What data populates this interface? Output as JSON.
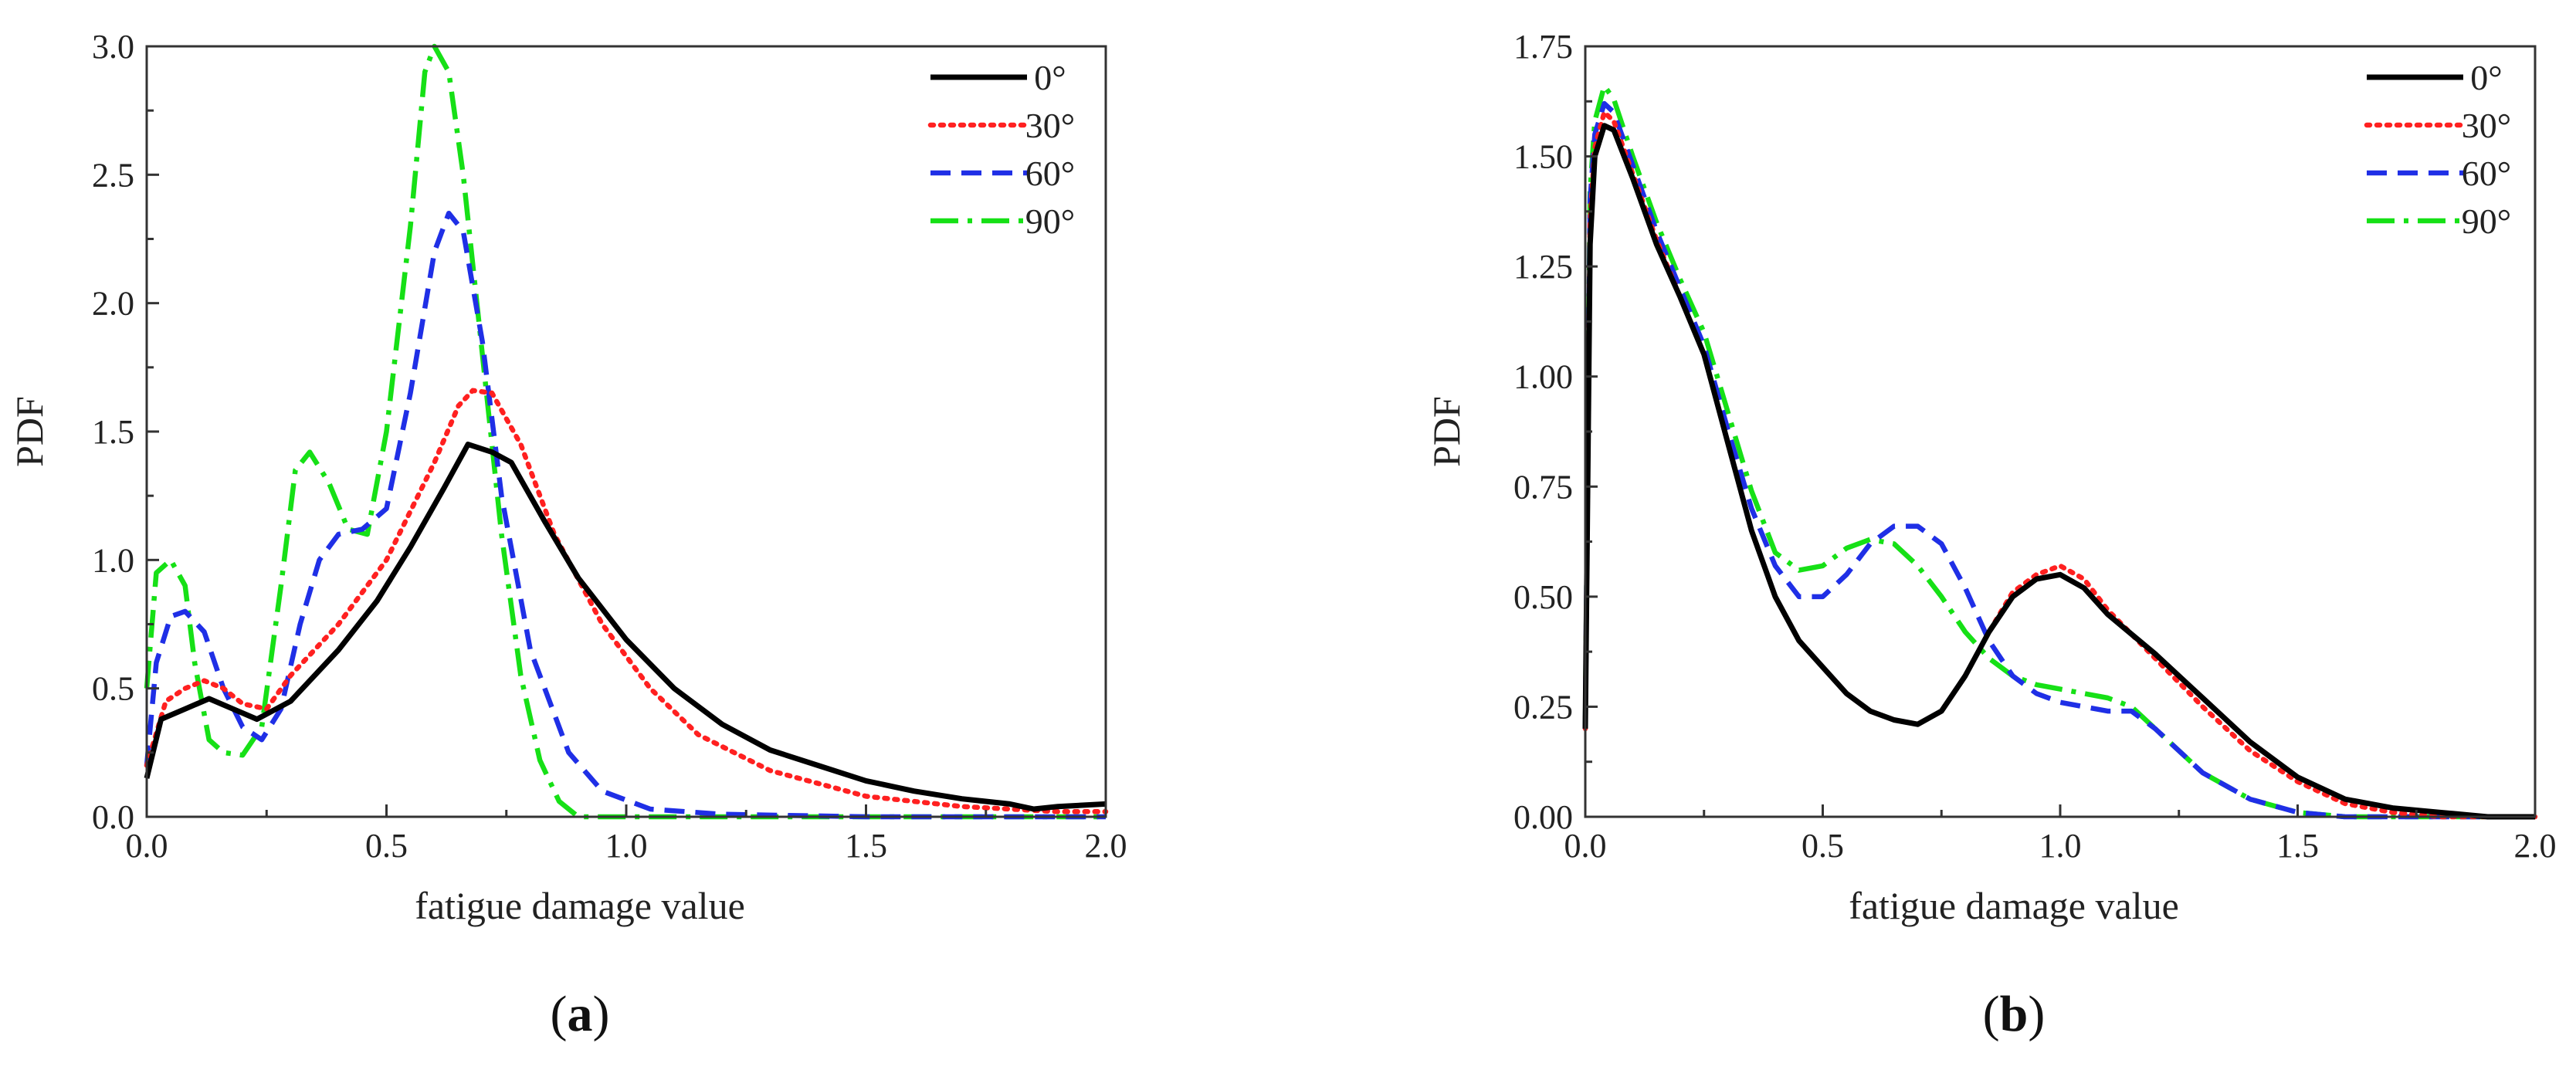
{
  "colors": {
    "0°": "#000000",
    "30°": "#ff2020",
    "60°": "#1f2fe6",
    "90°": "#16e016"
  },
  "chart_data": [
    {
      "panel": "(a)",
      "panel_letter": "a",
      "type": "line",
      "xlabel": "fatigue damage value",
      "ylabel": "PDF",
      "xlim": [
        0,
        2
      ],
      "ylim": [
        0,
        3
      ],
      "xticks": [
        0,
        0.5,
        1,
        1.5,
        2
      ],
      "xtick_labels": [
        "0.0",
        "0.5",
        "1.0",
        "1.5",
        "2.0"
      ],
      "yticks": [
        0,
        0.5,
        1,
        1.5,
        2,
        2.5,
        3
      ],
      "ytick_labels": [
        "0.0",
        "0.5",
        "1.0",
        "1.5",
        "2.0",
        "2.5",
        "3.0"
      ],
      "legend_position": "top-right",
      "grid": false,
      "series": [
        {
          "name": "0°",
          "style": "solid",
          "x": [
            0,
            0.03,
            0.08,
            0.13,
            0.18,
            0.23,
            0.3,
            0.4,
            0.48,
            0.55,
            0.62,
            0.67,
            0.72,
            0.76,
            0.83,
            0.9,
            1.0,
            1.1,
            1.2,
            1.3,
            1.4,
            1.5,
            1.6,
            1.7,
            1.8,
            1.85,
            1.9,
            2.0
          ],
          "y": [
            0.15,
            0.38,
            0.42,
            0.46,
            0.42,
            0.38,
            0.45,
            0.65,
            0.84,
            1.05,
            1.28,
            1.45,
            1.42,
            1.38,
            1.15,
            0.93,
            0.69,
            0.5,
            0.36,
            0.26,
            0.2,
            0.14,
            0.1,
            0.07,
            0.05,
            0.03,
            0.04,
            0.05
          ]
        },
        {
          "name": "30°",
          "style": "dotted",
          "x": [
            0,
            0.04,
            0.08,
            0.12,
            0.16,
            0.2,
            0.25,
            0.3,
            0.4,
            0.5,
            0.6,
            0.65,
            0.68,
            0.72,
            0.78,
            0.85,
            0.95,
            1.05,
            1.15,
            1.3,
            1.5,
            1.7,
            1.9,
            2.0
          ],
          "y": [
            0.2,
            0.45,
            0.5,
            0.53,
            0.5,
            0.44,
            0.42,
            0.55,
            0.75,
            1.0,
            1.38,
            1.6,
            1.66,
            1.65,
            1.45,
            1.1,
            0.75,
            0.5,
            0.32,
            0.18,
            0.08,
            0.04,
            0.02,
            0.02
          ]
        },
        {
          "name": "60°",
          "style": "dashed",
          "x": [
            0,
            0.02,
            0.05,
            0.08,
            0.12,
            0.16,
            0.2,
            0.24,
            0.28,
            0.32,
            0.36,
            0.4,
            0.45,
            0.5,
            0.55,
            0.6,
            0.63,
            0.66,
            0.7,
            0.74,
            0.8,
            0.88,
            0.95,
            1.05,
            1.2,
            1.5,
            2.0
          ],
          "y": [
            0.2,
            0.6,
            0.78,
            0.8,
            0.72,
            0.5,
            0.35,
            0.3,
            0.42,
            0.75,
            1.0,
            1.1,
            1.12,
            1.2,
            1.65,
            2.2,
            2.35,
            2.28,
            1.85,
            1.25,
            0.65,
            0.25,
            0.1,
            0.03,
            0.01,
            0.0,
            0.0
          ]
        },
        {
          "name": "90°",
          "style": "dashdot",
          "x": [
            0,
            0.02,
            0.05,
            0.08,
            0.1,
            0.13,
            0.16,
            0.2,
            0.24,
            0.28,
            0.31,
            0.34,
            0.38,
            0.42,
            0.46,
            0.5,
            0.55,
            0.58,
            0.6,
            0.63,
            0.66,
            0.7,
            0.74,
            0.78,
            0.82,
            0.86,
            0.9,
            1.0,
            2.0
          ],
          "y": [
            0.5,
            0.95,
            1.0,
            0.9,
            0.6,
            0.3,
            0.25,
            0.24,
            0.35,
            0.9,
            1.35,
            1.42,
            1.3,
            1.12,
            1.1,
            1.5,
            2.3,
            2.9,
            3.0,
            2.9,
            2.5,
            1.8,
            1.1,
            0.55,
            0.22,
            0.06,
            0.0,
            0.0,
            0.0
          ]
        }
      ]
    },
    {
      "panel": "(b)",
      "panel_letter": "b",
      "type": "line",
      "xlabel": "fatigue damage value",
      "ylabel": "PDF",
      "xlim": [
        0,
        2
      ],
      "ylim": [
        0,
        1.75
      ],
      "xticks": [
        0,
        0.5,
        1,
        1.5,
        2
      ],
      "xtick_labels": [
        "0.0",
        "0.5",
        "1.0",
        "1.5",
        "2.0"
      ],
      "yticks": [
        0,
        0.25,
        0.5,
        0.75,
        1,
        1.25,
        1.5,
        1.75
      ],
      "ytick_labels": [
        "0.00",
        "0.25",
        "0.50",
        "0.75",
        "1.00",
        "1.25",
        "1.50",
        "1.75"
      ],
      "legend_position": "top-right",
      "grid": false,
      "series": [
        {
          "name": "0°",
          "style": "solid",
          "x": [
            0,
            0.01,
            0.02,
            0.04,
            0.06,
            0.1,
            0.15,
            0.2,
            0.25,
            0.3,
            0.35,
            0.4,
            0.45,
            0.5,
            0.55,
            0.6,
            0.65,
            0.7,
            0.75,
            0.8,
            0.85,
            0.9,
            0.95,
            1.0,
            1.05,
            1.1,
            1.2,
            1.3,
            1.4,
            1.5,
            1.6,
            1.7,
            1.8,
            1.9,
            2.0
          ],
          "y": [
            0.2,
            1.3,
            1.5,
            1.57,
            1.56,
            1.45,
            1.3,
            1.18,
            1.05,
            0.85,
            0.65,
            0.5,
            0.4,
            0.34,
            0.28,
            0.24,
            0.22,
            0.21,
            0.24,
            0.32,
            0.42,
            0.5,
            0.54,
            0.55,
            0.52,
            0.46,
            0.37,
            0.27,
            0.17,
            0.09,
            0.04,
            0.02,
            0.01,
            0.0,
            0.0
          ]
        },
        {
          "name": "30°",
          "style": "dotted",
          "x": [
            0,
            0.01,
            0.02,
            0.04,
            0.06,
            0.1,
            0.15,
            0.2,
            0.25,
            0.3,
            0.35,
            0.4,
            0.45,
            0.5,
            0.55,
            0.6,
            0.65,
            0.7,
            0.75,
            0.8,
            0.85,
            0.9,
            0.95,
            1.0,
            1.05,
            1.1,
            1.2,
            1.3,
            1.4,
            1.5,
            1.6,
            1.7,
            1.8,
            1.9,
            2.0
          ],
          "y": [
            0.2,
            1.35,
            1.52,
            1.6,
            1.58,
            1.46,
            1.31,
            1.18,
            1.05,
            0.85,
            0.65,
            0.5,
            0.4,
            0.34,
            0.28,
            0.24,
            0.22,
            0.21,
            0.24,
            0.32,
            0.42,
            0.51,
            0.55,
            0.57,
            0.54,
            0.47,
            0.36,
            0.25,
            0.15,
            0.08,
            0.03,
            0.01,
            0.0,
            0.0,
            0.0
          ]
        },
        {
          "name": "60°",
          "style": "dashed",
          "x": [
            0,
            0.01,
            0.02,
            0.04,
            0.06,
            0.1,
            0.15,
            0.2,
            0.25,
            0.3,
            0.35,
            0.4,
            0.45,
            0.5,
            0.55,
            0.6,
            0.65,
            0.7,
            0.75,
            0.8,
            0.85,
            0.9,
            0.95,
            1.0,
            1.05,
            1.1,
            1.15,
            1.2,
            1.3,
            1.4,
            1.5,
            1.6,
            1.8,
            2.0
          ],
          "y": [
            0.2,
            1.4,
            1.55,
            1.62,
            1.6,
            1.48,
            1.33,
            1.2,
            1.07,
            0.88,
            0.7,
            0.57,
            0.5,
            0.5,
            0.55,
            0.62,
            0.66,
            0.66,
            0.62,
            0.52,
            0.4,
            0.32,
            0.28,
            0.26,
            0.25,
            0.24,
            0.24,
            0.2,
            0.1,
            0.04,
            0.01,
            0.0,
            0.0,
            0.0
          ]
        },
        {
          "name": "90°",
          "style": "dashdot",
          "x": [
            0,
            0.01,
            0.02,
            0.04,
            0.06,
            0.1,
            0.15,
            0.2,
            0.25,
            0.3,
            0.35,
            0.4,
            0.45,
            0.5,
            0.55,
            0.6,
            0.65,
            0.7,
            0.75,
            0.8,
            0.85,
            0.9,
            0.95,
            1.0,
            1.05,
            1.1,
            1.15,
            1.2,
            1.3,
            1.4,
            1.5,
            1.6,
            1.8,
            2.0
          ],
          "y": [
            0.2,
            1.42,
            1.58,
            1.66,
            1.63,
            1.5,
            1.35,
            1.22,
            1.1,
            0.92,
            0.74,
            0.6,
            0.56,
            0.57,
            0.61,
            0.63,
            0.62,
            0.57,
            0.5,
            0.42,
            0.36,
            0.32,
            0.3,
            0.29,
            0.28,
            0.27,
            0.25,
            0.2,
            0.1,
            0.04,
            0.01,
            0.0,
            0.0,
            0.0
          ]
        }
      ]
    }
  ]
}
